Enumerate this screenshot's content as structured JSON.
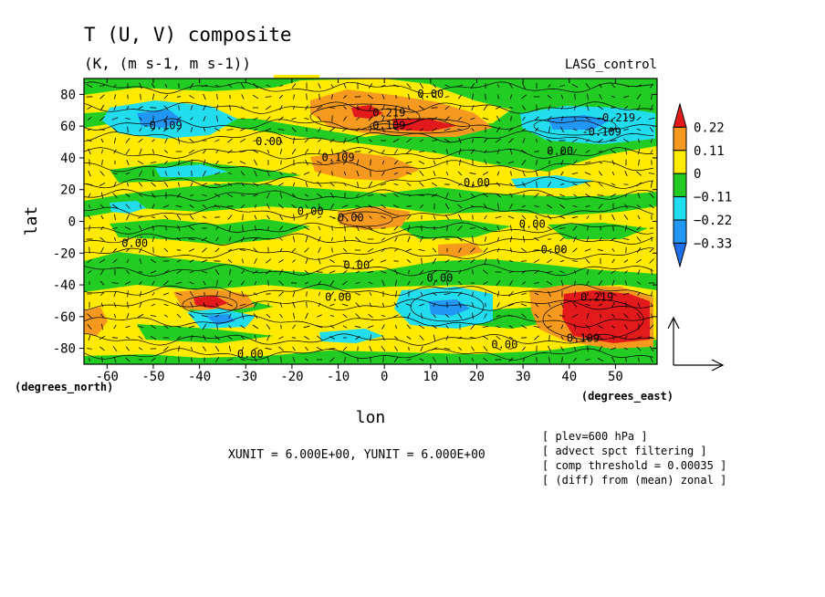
{
  "chart_data": {
    "type": "heatmap",
    "title": "T (U, V) composite",
    "subtitle": "(K, (m s-1, m s-1))",
    "experiment": "LASG_control",
    "xlabel": "lon",
    "ylabel": "lat",
    "xunits": "(degrees_east)",
    "yunits": "(degrees_north)",
    "xlim": [
      -65,
      59
    ],
    "ylim": [
      -90,
      90
    ],
    "x_ticks": [
      "-60",
      "-50",
      "-40",
      "-30",
      "-20",
      "-10",
      "0",
      "10",
      "20",
      "30",
      "40",
      "50"
    ],
    "y_ticks": [
      "80",
      "60",
      "40",
      "20",
      "0",
      "-20",
      "-40",
      "-60",
      "-80"
    ],
    "legend": {
      "placement": "right",
      "labels": [
        "0.22",
        "0.11",
        "0",
        "−0.11",
        "−0.22",
        "−0.33"
      ],
      "colors": [
        "#e31a1c",
        "#f59a1e",
        "#ffea00",
        "#22cc22",
        "#22ddee",
        "#2196f3",
        "#1e6fe8"
      ]
    },
    "contour_labels": [
      {
        "text": "0.00",
        "lon": 10,
        "lat": 78
      },
      {
        "text": "0.219",
        "lon": 1,
        "lat": 66
      },
      {
        "text": "0.109",
        "lon": 1,
        "lat": 58
      },
      {
        "text": "-0.109",
        "lon": -48,
        "lat": 58
      },
      {
        "text": "0.00",
        "lon": -25,
        "lat": 48
      },
      {
        "text": "0.109",
        "lon": -10,
        "lat": 38
      },
      {
        "text": "0.00",
        "lon": 20,
        "lat": 22
      },
      {
        "text": "-0.219",
        "lon": 50,
        "lat": 63
      },
      {
        "text": "-0.109",
        "lon": 47,
        "lat": 54
      },
      {
        "text": "0.00",
        "lon": 38,
        "lat": 42
      },
      {
        "text": "0.00",
        "lon": -16,
        "lat": 4
      },
      {
        "text": "-0.00",
        "lon": -8,
        "lat": 0
      },
      {
        "text": "0.00",
        "lon": 32,
        "lat": -4
      },
      {
        "text": "0.00",
        "lon": -54,
        "lat": -16
      },
      {
        "text": "-0.00",
        "lon": 36,
        "lat": -20
      },
      {
        "text": "0.00",
        "lon": -6,
        "lat": -30
      },
      {
        "text": "0.00",
        "lon": 12,
        "lat": -38
      },
      {
        "text": "0.00",
        "lon": -10,
        "lat": -50
      },
      {
        "text": "0.219",
        "lon": 46,
        "lat": -50
      },
      {
        "text": "0.109",
        "lon": 43,
        "lat": -76
      },
      {
        "text": "0.00",
        "lon": 26,
        "lat": -80
      },
      {
        "text": "0.00",
        "lon": -29,
        "lat": -86
      }
    ]
  },
  "vector_units": "XUNIT = 6.000E+00, YUNIT = 6.000E+00",
  "notes": [
    "[ plev=600 hPa ]",
    "[ advect spct filtering ]",
    "[ comp threshold = 0.00035 ]",
    "[ (diff) from (mean) zonal ]"
  ]
}
